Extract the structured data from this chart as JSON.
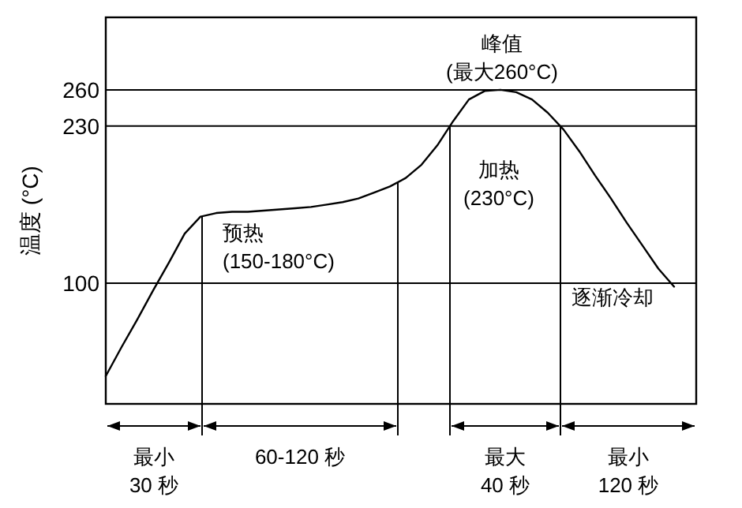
{
  "chart_data": {
    "type": "line",
    "ylabel": "温度 (°C)",
    "categories": [
      null,
      null,
      null,
      null,
      null,
      null,
      null,
      null,
      null,
      null,
      null,
      null,
      null,
      null,
      null,
      null,
      null,
      null,
      null,
      null,
      null,
      null,
      null,
      null,
      null,
      null,
      null,
      null,
      null,
      null,
      null,
      null,
      null,
      null,
      null,
      null,
      null
    ],
    "series": [
      {
        "color": "#000000",
        "values": [
          23,
          47,
          70,
          94,
          117,
          141,
          155,
          158,
          159,
          159,
          160,
          161,
          162,
          163,
          165,
          167,
          170,
          175,
          180,
          187,
          198,
          214,
          234,
          252,
          259,
          260,
          258,
          252,
          241,
          227,
          209,
          189,
          170,
          150,
          131,
          112,
          97
        ]
      }
    ],
    "ylim": [
      0,
      320
    ],
    "yticks": [
      100,
      230,
      260
    ],
    "marker": "none",
    "line_style": "solid",
    "ref_lines": [
      {
        "axis": "y",
        "value": 260
      },
      {
        "axis": "y",
        "value": 230
      },
      {
        "axis": "y",
        "value": 100
      }
    ],
    "annotations": [
      "峰值\n(最大260°C)",
      "加热\n(230°C)",
      "预热\n(150-180°C)",
      "逐渐冷却",
      "最小\n30 秒",
      "60-120 秒",
      "最大\n40 秒",
      "最小\n120 秒"
    ]
  }
}
